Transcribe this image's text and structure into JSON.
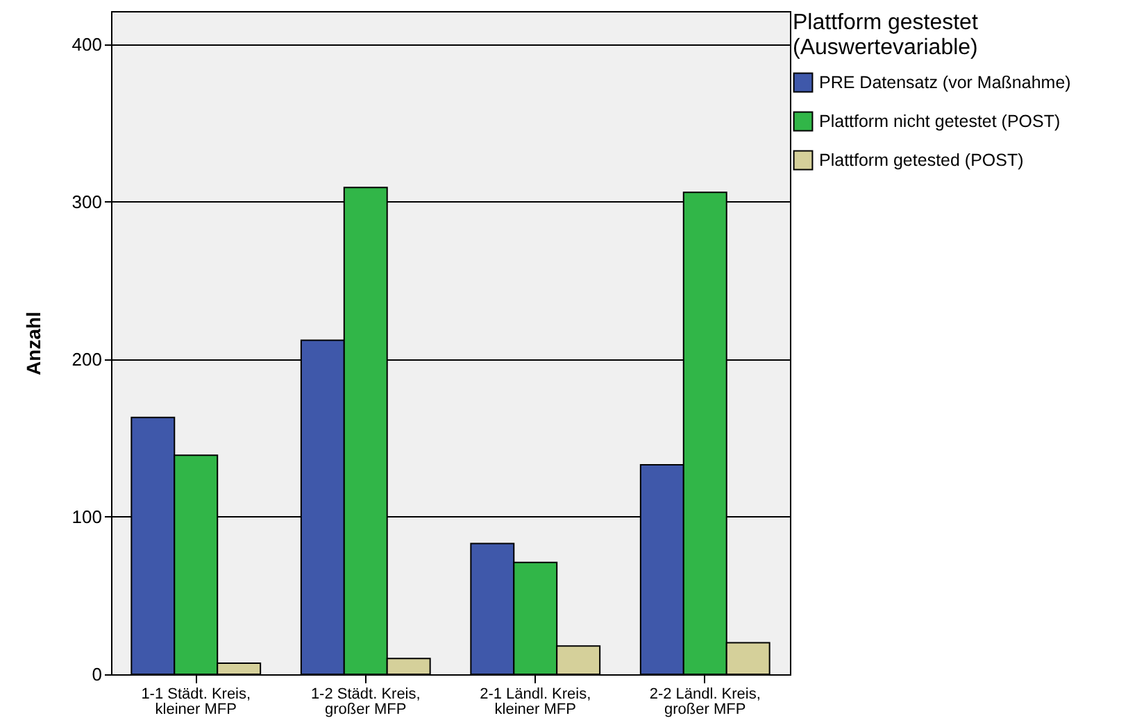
{
  "chart_data": {
    "type": "bar",
    "ylabel": "Anzahl",
    "legend_title": "Plattform gestestet\n(Auswertevariable)",
    "categories": [
      "1-1 Städt. Kreis,\nkleiner MFP",
      "1-2 Städt. Kreis,\ngroßer MFP",
      "2-1 Ländl. Kreis,\nkleiner MFP",
      "2-2 Ländl. Kreis,\ngroßer MFP"
    ],
    "series": [
      {
        "name": "PRE Datensatz (vor Maßnahme)",
        "color": "#3f58aa",
        "values": [
          163,
          212,
          83,
          133
        ]
      },
      {
        "name": "Plattform nicht getestet (POST)",
        "color": "#31b648",
        "values": [
          139,
          309,
          71,
          306
        ]
      },
      {
        "name": "Plattform getested (POST)",
        "color": "#d5d09a",
        "values": [
          7,
          10,
          18,
          20
        ]
      }
    ],
    "ylim": [
      0,
      421
    ],
    "yticks": [
      0,
      100,
      200,
      300,
      400
    ],
    "grid": "y",
    "legend": "top right"
  }
}
